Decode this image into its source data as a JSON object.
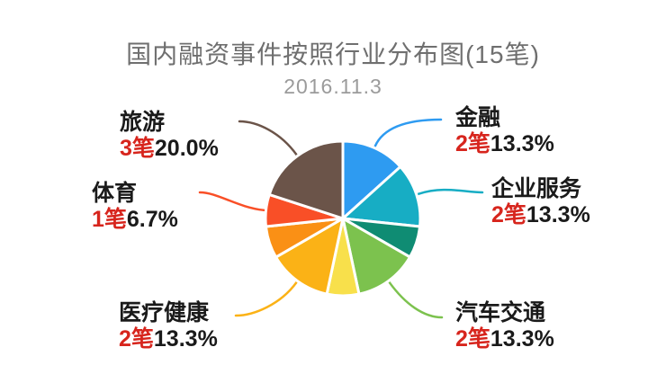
{
  "header": {
    "title": "国内融资事件按照行业分布图(15笔)",
    "subtitle": "2016.11.3"
  },
  "chart_data": {
    "type": "pie",
    "title": "国内融资事件按照行业分布图(15笔)",
    "subtitle": "2016.11.3",
    "total_deals": 15,
    "unit": "笔",
    "legend_position": "none",
    "slices": [
      {
        "name": "金融",
        "count_label": "2笔",
        "pct_label": "13.3%",
        "value": 13.33,
        "color": "#2e9bf1",
        "labeled": true
      },
      {
        "name": "企业服务",
        "count_label": "2笔",
        "pct_label": "13.3%",
        "value": 13.33,
        "color": "#17adc4",
        "labeled": true
      },
      {
        "name": "",
        "count_label": "",
        "pct_label": "",
        "value": 6.67,
        "color": "#0f8c73",
        "labeled": false
      },
      {
        "name": "汽车交通",
        "count_label": "2笔",
        "pct_label": "13.3%",
        "value": 13.33,
        "color": "#7cc24e",
        "labeled": true
      },
      {
        "name": "",
        "count_label": "",
        "pct_label": "",
        "value": 6.67,
        "color": "#f8e04b",
        "labeled": false
      },
      {
        "name": "医疗健康",
        "count_label": "2笔",
        "pct_label": "13.3%",
        "value": 13.33,
        "color": "#fbb216",
        "labeled": true
      },
      {
        "name": "",
        "count_label": "",
        "pct_label": "",
        "value": 6.67,
        "color": "#fa9015",
        "labeled": false
      },
      {
        "name": "体育",
        "count_label": "1笔",
        "pct_label": "6.7%",
        "value": 6.67,
        "color": "#f94f27",
        "labeled": true
      },
      {
        "name": "旅游",
        "count_label": "3笔",
        "pct_label": "20.0%",
        "value": 20.0,
        "color": "#6b5449",
        "labeled": true
      }
    ],
    "colors": {
      "count_text": "#d7251d",
      "label_text": "#1a1a1a",
      "title_text": "#6f6f6f",
      "subtitle_text": "#9b9b9b",
      "background": "#ffffff"
    }
  }
}
